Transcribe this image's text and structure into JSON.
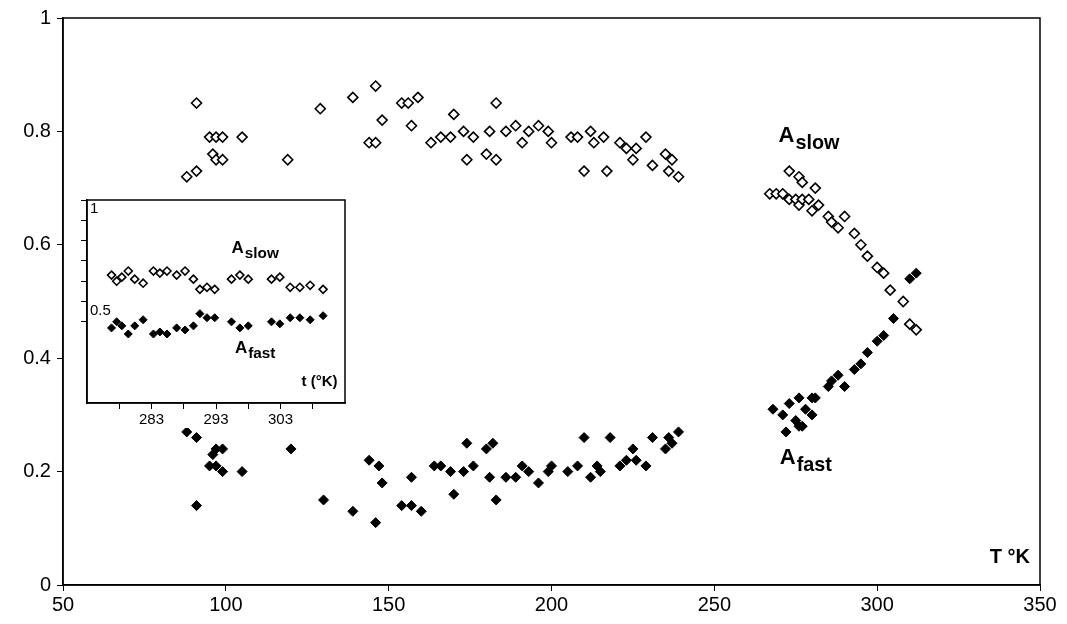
{
  "chart_data": [
    {
      "type": "scatter",
      "xlabel": "T °K",
      "xlim": [
        50,
        350
      ],
      "xticks": [
        50,
        100,
        150,
        200,
        250,
        300,
        350
      ],
      "ylim": [
        0,
        1
      ],
      "yticks": [
        0,
        0.2,
        0.4,
        0.6,
        0.8,
        1
      ],
      "grid": false,
      "legend": false,
      "series": [
        {
          "name": "A$_{slow}$",
          "color": "#000000",
          "marker": "diamond-open",
          "x": [
            88,
            91,
            91,
            95,
            96,
            97,
            97,
            99,
            99,
            105,
            119,
            129,
            139,
            144,
            146,
            146,
            148,
            154,
            156,
            157,
            159,
            163,
            166,
            169,
            170,
            173,
            174,
            176,
            180,
            181,
            183,
            183,
            186,
            189,
            191,
            193,
            196,
            199,
            200,
            206,
            208,
            210,
            212,
            213,
            216,
            217,
            221,
            223,
            225,
            226,
            229,
            231,
            235,
            236,
            237,
            239,
            267,
            269,
            271,
            273,
            273,
            275,
            276,
            276,
            277,
            277,
            279,
            280,
            281,
            282,
            285,
            286,
            288,
            290,
            293,
            295,
            297,
            300,
            302,
            304,
            308,
            310,
            312
          ],
          "values": [
            0.72,
            0.73,
            0.85,
            0.79,
            0.76,
            0.79,
            0.75,
            0.75,
            0.79,
            0.79,
            0.75,
            0.84,
            0.86,
            0.78,
            0.78,
            0.88,
            0.82,
            0.85,
            0.85,
            0.81,
            0.86,
            0.78,
            0.79,
            0.79,
            0.83,
            0.8,
            0.75,
            0.79,
            0.76,
            0.8,
            0.75,
            0.85,
            0.8,
            0.81,
            0.78,
            0.8,
            0.81,
            0.8,
            0.78,
            0.79,
            0.79,
            0.73,
            0.8,
            0.78,
            0.79,
            0.73,
            0.78,
            0.77,
            0.75,
            0.77,
            0.79,
            0.74,
            0.76,
            0.73,
            0.75,
            0.72,
            0.69,
            0.69,
            0.69,
            0.73,
            0.68,
            0.68,
            0.72,
            0.67,
            0.71,
            0.68,
            0.68,
            0.66,
            0.7,
            0.67,
            0.65,
            0.64,
            0.63,
            0.65,
            0.62,
            0.6,
            0.58,
            0.56,
            0.55,
            0.52,
            0.5,
            0.46,
            0.45
          ]
        },
        {
          "name": "A$_{fast}$",
          "color": "#000000",
          "marker": "diamond",
          "x": [
            88,
            91,
            91,
            95,
            96,
            97,
            97,
            99,
            99,
            105,
            120,
            130,
            139,
            144,
            146,
            147,
            148,
            154,
            157,
            157,
            160,
            164,
            166,
            169,
            170,
            173,
            174,
            176,
            180,
            181,
            182,
            183,
            186,
            189,
            191,
            193,
            196,
            199,
            200,
            205,
            208,
            210,
            212,
            214,
            215,
            218,
            221,
            223,
            225,
            226,
            229,
            231,
            235,
            236,
            237,
            239,
            268,
            271,
            272,
            273,
            275,
            276,
            276,
            277,
            278,
            280,
            280,
            281,
            285,
            286,
            288,
            290,
            293,
            295,
            297,
            300,
            302,
            305,
            310,
            312
          ],
          "values": [
            0.27,
            0.26,
            0.14,
            0.21,
            0.23,
            0.24,
            0.21,
            0.24,
            0.2,
            0.2,
            0.24,
            0.15,
            0.13,
            0.22,
            0.11,
            0.21,
            0.18,
            0.14,
            0.14,
            0.19,
            0.13,
            0.21,
            0.21,
            0.2,
            0.16,
            0.2,
            0.25,
            0.21,
            0.24,
            0.19,
            0.25,
            0.15,
            0.19,
            0.19,
            0.21,
            0.2,
            0.18,
            0.2,
            0.21,
            0.2,
            0.21,
            0.26,
            0.19,
            0.21,
            0.2,
            0.26,
            0.21,
            0.22,
            0.24,
            0.22,
            0.21,
            0.26,
            0.24,
            0.26,
            0.25,
            0.27,
            0.31,
            0.3,
            0.27,
            0.32,
            0.29,
            0.28,
            0.33,
            0.28,
            0.31,
            0.3,
            0.33,
            0.33,
            0.35,
            0.36,
            0.37,
            0.35,
            0.38,
            0.39,
            0.41,
            0.43,
            0.44,
            0.47,
            0.54,
            0.55
          ]
        }
      ]
    },
    {
      "type": "scatter",
      "xlabel": "t (°K)",
      "xlim": [
        273,
        313
      ],
      "xticks": [
        {
          "value": 278,
          "label": null
        },
        283,
        {
          "value": 288,
          "label": null
        },
        293,
        {
          "value": 298,
          "label": null
        },
        303,
        {
          "value": 308,
          "label": null
        }
      ],
      "ylim": [
        0,
        1
      ],
      "yticks": [
        {
          "value": 0.4,
          "label": null
        },
        0.5,
        {
          "value": 0.6,
          "label": null
        },
        {
          "value": 0.7,
          "label": null
        },
        {
          "value": 0.8,
          "label": null
        },
        {
          "value": 0.9,
          "label": null
        },
        1
      ],
      "grid": false,
      "legend": false,
      "series": [
        {
          "name": "A$_{slow}$",
          "color": "#000000",
          "marker": "diamond-open",
          "x": [
            276.8,
            277.6,
            278.4,
            279.4,
            280.4,
            281.7,
            283.3,
            284.3,
            285.4,
            286.9,
            288.2,
            289.5,
            290.5,
            291.6,
            292.8,
            295.4,
            296.7,
            298.0,
            301.6,
            302.9,
            304.5,
            306.0,
            307.6,
            309.6
          ],
          "values": [
            0.63,
            0.6,
            0.62,
            0.65,
            0.61,
            0.59,
            0.65,
            0.64,
            0.65,
            0.63,
            0.65,
            0.61,
            0.56,
            0.57,
            0.56,
            0.61,
            0.63,
            0.61,
            0.61,
            0.62,
            0.57,
            0.57,
            0.58,
            0.56
          ]
        },
        {
          "name": "A$_{fast}$",
          "color": "#000000",
          "marker": "diamond",
          "x": [
            276.8,
            277.6,
            278.4,
            279.4,
            280.4,
            281.7,
            283.3,
            284.3,
            285.4,
            286.9,
            288.2,
            289.5,
            290.5,
            291.6,
            292.8,
            295.4,
            296.7,
            298.0,
            301.6,
            302.9,
            304.5,
            306.0,
            307.6,
            309.6
          ],
          "values": [
            0.37,
            0.4,
            0.38,
            0.34,
            0.38,
            0.41,
            0.34,
            0.35,
            0.34,
            0.37,
            0.36,
            0.38,
            0.44,
            0.42,
            0.42,
            0.4,
            0.37,
            0.38,
            0.4,
            0.39,
            0.42,
            0.42,
            0.41,
            0.43
          ]
        }
      ]
    }
  ]
}
